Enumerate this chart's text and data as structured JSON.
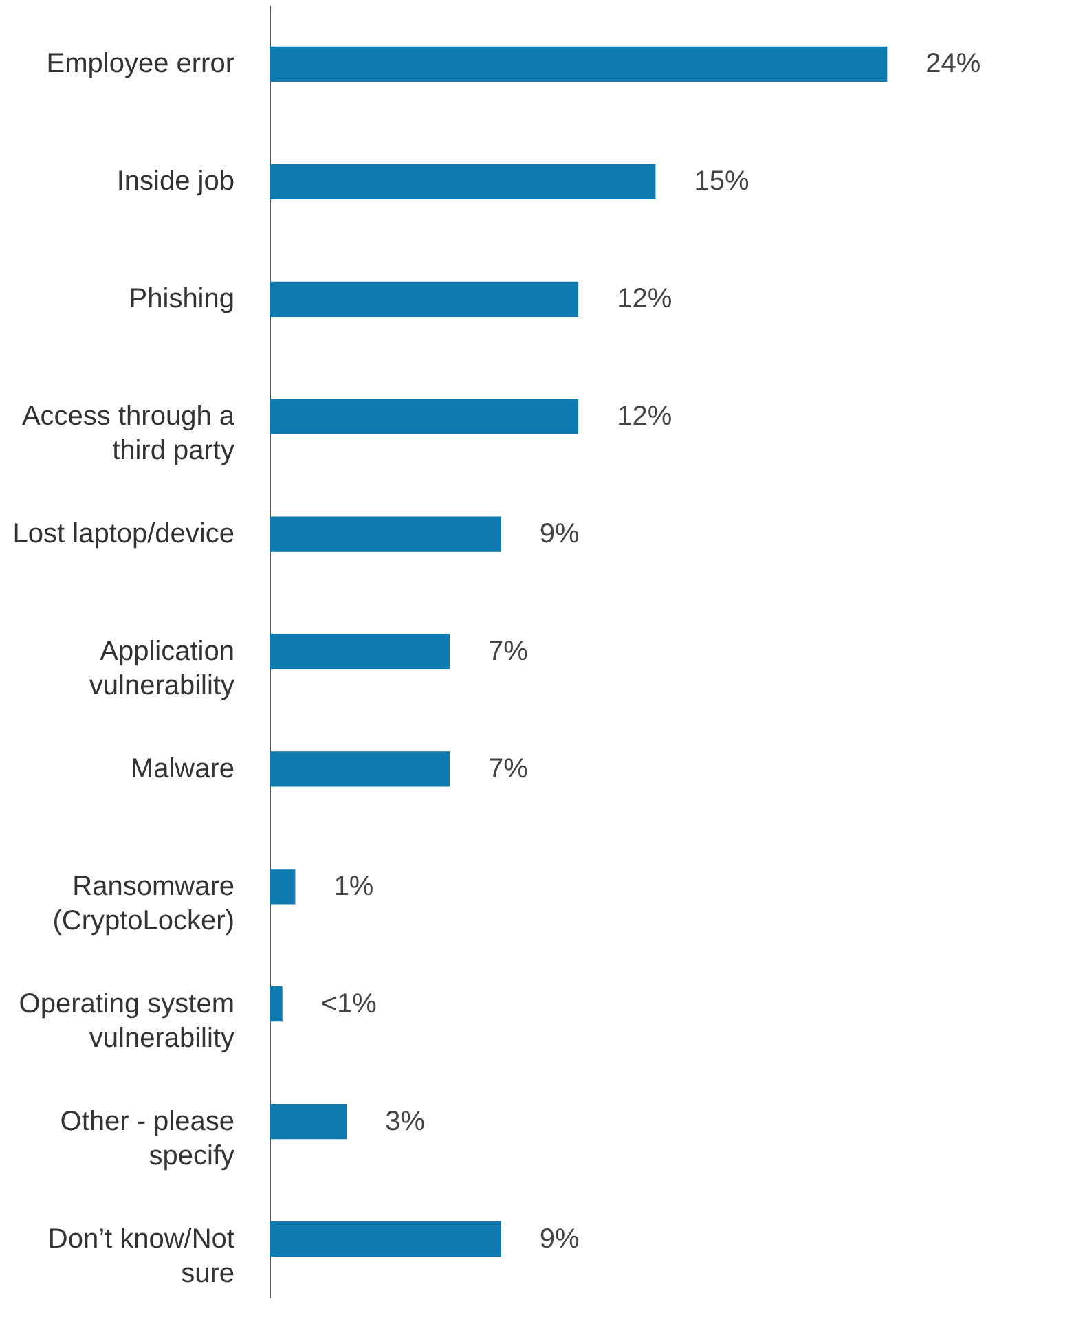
{
  "chart_data": {
    "type": "bar",
    "orientation": "horizontal",
    "categories": [
      "Employee error",
      "Inside job",
      "Phishing",
      "Access through a\nthird party",
      "Lost laptop/device",
      "Application\nvulnerability",
      "Malware",
      "Ransomware\n(CryptoLocker)",
      "Operating system\nvulnerability",
      "Other - please\nspecify",
      "Don’t know/Not\nsure"
    ],
    "values": [
      24,
      15,
      12,
      12,
      9,
      7,
      7,
      1,
      0.5,
      3,
      9
    ],
    "value_labels": [
      "24%",
      "15%",
      "12%",
      "12%",
      "9%",
      "7%",
      "7%",
      "1%",
      "<1%",
      "3%",
      "9%"
    ],
    "color": "#0e7ab0"
  }
}
